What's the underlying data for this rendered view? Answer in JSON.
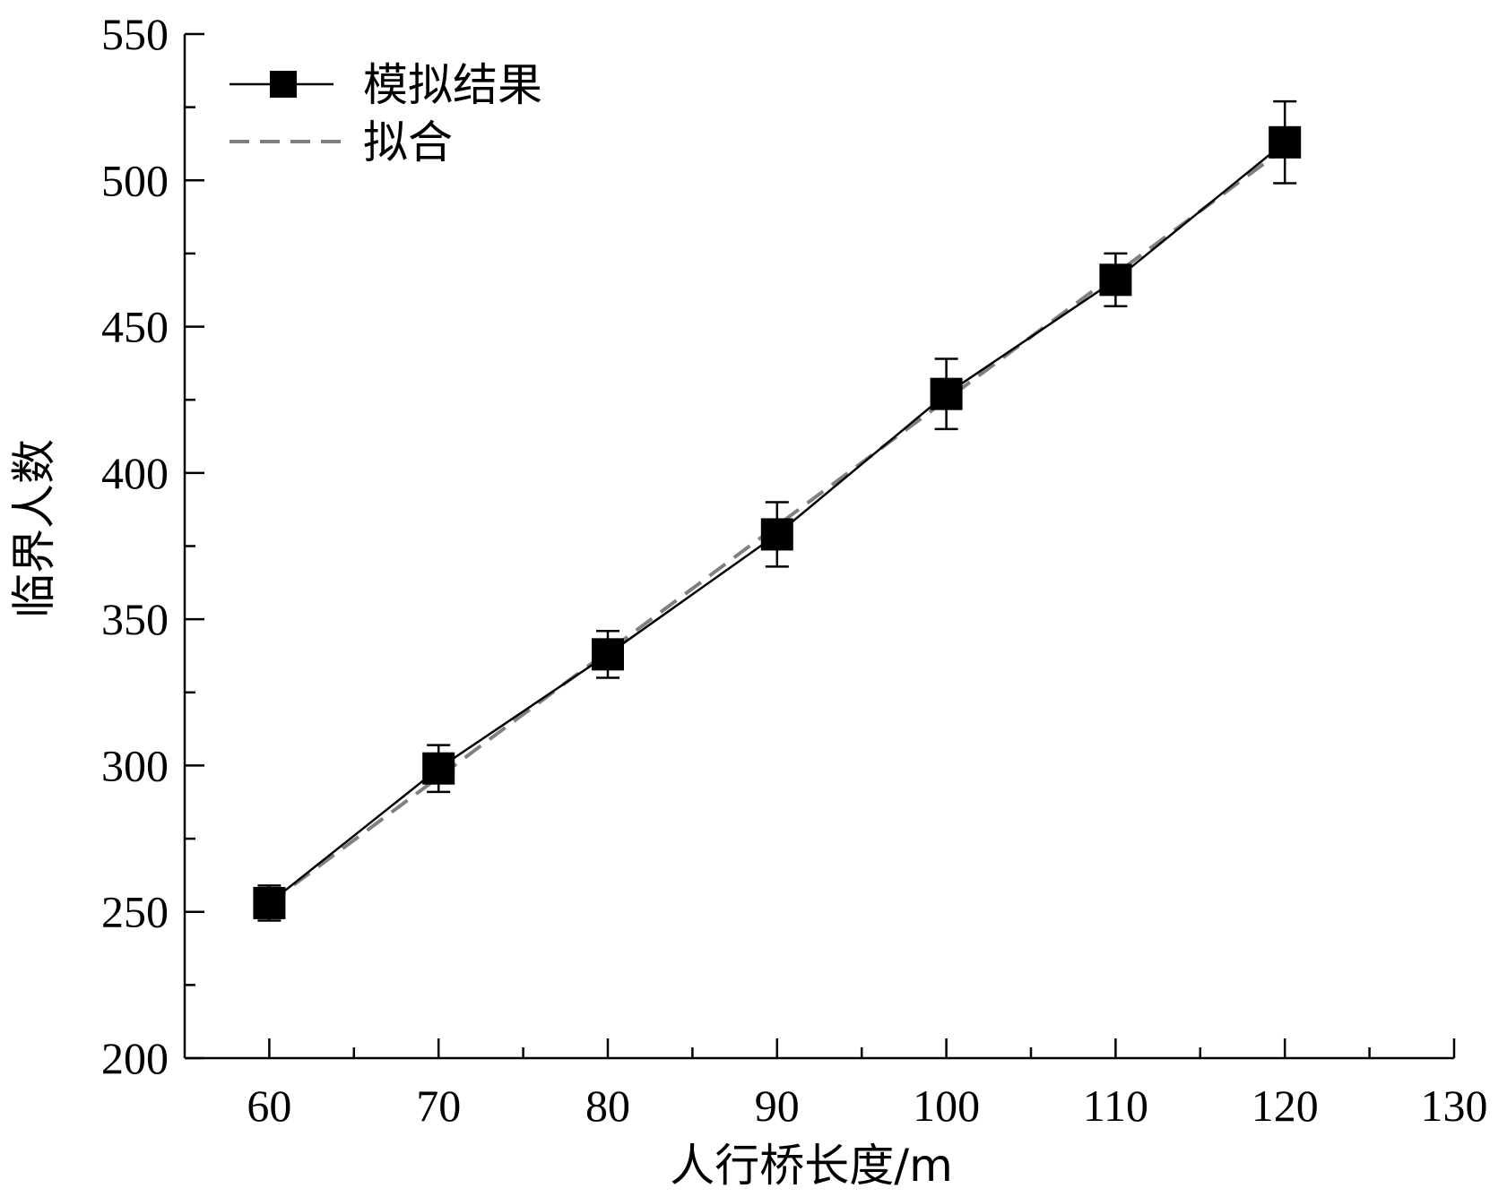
{
  "chart_data": {
    "type": "line",
    "title": "",
    "xlabel": "人行桥长度/m",
    "ylabel": "临界人数",
    "xlim": [
      55,
      130
    ],
    "ylim": [
      200,
      550
    ],
    "x_ticks": [
      60,
      70,
      80,
      90,
      100,
      110,
      120,
      130
    ],
    "y_ticks": [
      200,
      250,
      300,
      350,
      400,
      450,
      500,
      550
    ],
    "grid": false,
    "legend_position": "top-left",
    "series": [
      {
        "name": "模拟结果",
        "style": "solid line with square markers and error bars",
        "color": "#000000",
        "x": [
          60,
          70,
          80,
          90,
          100,
          110,
          120
        ],
        "y": [
          253,
          299,
          338,
          379,
          427,
          466,
          513
        ],
        "error": [
          6,
          8,
          8,
          11,
          12,
          9,
          14
        ]
      },
      {
        "name": "拟合",
        "style": "dashed line",
        "color": "#808080",
        "x": [
          60,
          120
        ],
        "y": [
          253,
          511
        ]
      }
    ]
  }
}
